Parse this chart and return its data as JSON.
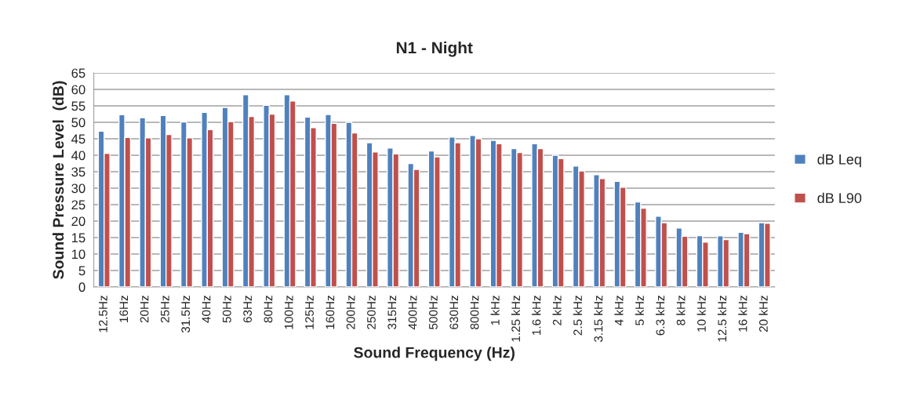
{
  "chart_data": {
    "type": "bar",
    "title": "N1 - Night",
    "xlabel": "Sound Frequency (Hz)",
    "ylabel": "Sound Pressure Level  (dB)",
    "categories": [
      "12.5Hz",
      "16Hz",
      "20Hz",
      "25Hz",
      "31.5Hz",
      "40Hz",
      "50Hz",
      "63Hz",
      "80Hz",
      "100Hz",
      "125Hz",
      "160Hz",
      "200Hz",
      "250Hz",
      "315Hz",
      "400Hz",
      "500Hz",
      "630Hz",
      "800Hz",
      "1 kHz",
      "1.25 kHz",
      "1.6 kHz",
      "2 kHz",
      "2.5 kHz",
      "3.15 kHz",
      "4 kHz",
      "5 kHz",
      "6.3 kHz",
      "8 kHz",
      "10 kHz",
      "12.5 kHz",
      "16 kHz",
      "20 kHz"
    ],
    "series": [
      {
        "name": "dB Leq",
        "color": "#4f81bd",
        "values": [
          47.3,
          52.3,
          51.4,
          52.1,
          50.1,
          53,
          54.5,
          58.4,
          55.2,
          58.4,
          51.6,
          52.4,
          50,
          43.8,
          42.2,
          37.5,
          41.3,
          45.5,
          46,
          44.5,
          42,
          43.5,
          40,
          36.7,
          34.1,
          32.1,
          25.8,
          21.5,
          17.9,
          15.6,
          15.5,
          16.6,
          19.5
        ]
      },
      {
        "name": "dB L90",
        "color": "#c0504d",
        "values": [
          40.6,
          45.4,
          45.3,
          46.3,
          45.3,
          47.8,
          50.2,
          51.8,
          52.5,
          56.5,
          48.4,
          49.7,
          46.8,
          41,
          40.4,
          35.7,
          39.5,
          43.8,
          45,
          43.5,
          40.8,
          42,
          39,
          35.2,
          32.9,
          30.3,
          23.9,
          19.5,
          15.4,
          13.6,
          14.4,
          16.2,
          19.3
        ]
      }
    ],
    "ylim": [
      0,
      65
    ],
    "yticks": [
      0,
      5,
      10,
      15,
      20,
      25,
      30,
      35,
      40,
      45,
      50,
      55,
      60,
      65
    ],
    "grid": "y",
    "legend": "right"
  }
}
